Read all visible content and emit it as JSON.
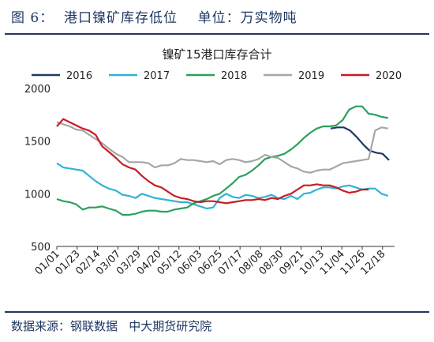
{
  "header": {
    "figure_title": "图 6：  港口镍矿库存低位    单位：万实物吨"
  },
  "footer": {
    "source": "数据来源：钢联数据   中大期货研究院"
  },
  "chart_data": {
    "type": "line",
    "title": "镍矿15港口库存合计",
    "xlabel": "",
    "ylabel": "",
    "ylim": [
      500,
      2000
    ],
    "y_ticks": [
      500,
      1000,
      1500,
      2000
    ],
    "x_ticks": [
      "01/01",
      "01/23",
      "02/14",
      "03/07",
      "03/29",
      "04/20",
      "05/12",
      "06/03",
      "06/25",
      "07/17",
      "08/08",
      "08/30",
      "09/21",
      "10/13",
      "11/04",
      "11/26",
      "12/18"
    ],
    "grid": false,
    "legend": "top",
    "series": [
      {
        "name": "2016",
        "color": "#1f3864",
        "x": [
          "10/23",
          "10/30",
          "11/06",
          "11/13",
          "11/20",
          "11/27",
          "12/04",
          "12/11",
          "12/18",
          "12/25"
        ],
        "values": [
          1620,
          1630,
          1630,
          1600,
          1540,
          1470,
          1410,
          1390,
          1380,
          1320
        ]
      },
      {
        "name": "2017",
        "color": "#31b2d8",
        "x": [
          "01/01",
          "01/08",
          "01/15",
          "01/22",
          "01/29",
          "02/05",
          "02/12",
          "02/19",
          "02/26",
          "03/05",
          "03/12",
          "03/19",
          "03/26",
          "04/02",
          "04/09",
          "04/16",
          "04/23",
          "04/30",
          "05/07",
          "05/14",
          "05/21",
          "05/28",
          "06/04",
          "06/11",
          "06/18",
          "06/25",
          "07/02",
          "07/09",
          "07/16",
          "07/23",
          "07/30",
          "08/06",
          "08/13",
          "08/20",
          "08/27",
          "09/03",
          "09/10",
          "09/17",
          "09/24",
          "10/01",
          "10/08",
          "10/15",
          "10/22",
          "10/29",
          "11/05",
          "11/12",
          "11/19",
          "11/26",
          "12/03",
          "12/10",
          "12/17",
          "12/24"
        ],
        "values": [
          1290,
          1250,
          1240,
          1230,
          1220,
          1170,
          1120,
          1080,
          1050,
          1030,
          990,
          980,
          960,
          1000,
          980,
          960,
          950,
          940,
          930,
          920,
          920,
          900,
          880,
          860,
          870,
          960,
          1000,
          970,
          960,
          990,
          980,
          960,
          970,
          990,
          960,
          950,
          980,
          950,
          1000,
          1010,
          1040,
          1060,
          1060,
          1050,
          1070,
          1080,
          1060,
          1040,
          1050,
          1050,
          1000,
          980
        ]
      },
      {
        "name": "2018",
        "color": "#2ca05a",
        "x": [
          "01/01",
          "01/08",
          "01/15",
          "01/22",
          "01/29",
          "02/05",
          "02/12",
          "02/19",
          "02/26",
          "03/05",
          "03/12",
          "03/19",
          "03/26",
          "04/02",
          "04/09",
          "04/16",
          "04/23",
          "04/30",
          "05/07",
          "05/14",
          "05/21",
          "05/28",
          "06/04",
          "06/11",
          "06/18",
          "06/25",
          "07/02",
          "07/09",
          "07/16",
          "07/23",
          "07/30",
          "08/06",
          "08/13",
          "08/20",
          "08/27",
          "09/03",
          "09/10",
          "09/17",
          "09/24",
          "10/01",
          "10/08",
          "10/15",
          "10/22",
          "10/29",
          "11/05",
          "11/12",
          "11/19",
          "11/26",
          "12/03",
          "12/10",
          "12/17",
          "12/24"
        ],
        "values": [
          950,
          930,
          920,
          900,
          850,
          870,
          870,
          880,
          860,
          840,
          800,
          800,
          810,
          830,
          840,
          840,
          830,
          830,
          850,
          860,
          870,
          910,
          930,
          950,
          980,
          1000,
          1050,
          1100,
          1160,
          1180,
          1220,
          1270,
          1330,
          1350,
          1360,
          1380,
          1420,
          1470,
          1530,
          1580,
          1620,
          1640,
          1640,
          1650,
          1700,
          1800,
          1830,
          1830,
          1760,
          1750,
          1730,
          1720
        ]
      },
      {
        "name": "2019",
        "color": "#a6a6a6",
        "x": [
          "01/01",
          "01/08",
          "01/15",
          "01/22",
          "01/29",
          "02/05",
          "02/12",
          "02/19",
          "02/26",
          "03/05",
          "03/12",
          "03/19",
          "03/26",
          "04/02",
          "04/09",
          "04/16",
          "04/23",
          "04/30",
          "05/07",
          "05/14",
          "05/21",
          "05/28",
          "06/04",
          "06/11",
          "06/18",
          "06/25",
          "07/02",
          "07/09",
          "07/16",
          "07/23",
          "07/30",
          "08/06",
          "08/13",
          "08/20",
          "08/27",
          "09/03",
          "09/10",
          "09/17",
          "09/24",
          "10/01",
          "10/08",
          "10/15",
          "10/22",
          "10/29",
          "11/05",
          "11/12",
          "11/19",
          "11/26",
          "12/03",
          "12/10",
          "12/17",
          "12/24"
        ],
        "values": [
          1680,
          1660,
          1640,
          1610,
          1600,
          1560,
          1520,
          1480,
          1430,
          1380,
          1350,
          1300,
          1300,
          1300,
          1290,
          1250,
          1270,
          1270,
          1290,
          1330,
          1320,
          1320,
          1310,
          1300,
          1310,
          1280,
          1320,
          1330,
          1320,
          1300,
          1310,
          1330,
          1370,
          1350,
          1340,
          1300,
          1260,
          1240,
          1210,
          1200,
          1220,
          1230,
          1230,
          1260,
          1290,
          1300,
          1310,
          1320,
          1330,
          1600,
          1630,
          1620
        ]
      },
      {
        "name": "2020",
        "color": "#c91c23",
        "x": [
          "01/01",
          "01/08",
          "01/15",
          "01/22",
          "01/29",
          "02/05",
          "02/12",
          "02/19",
          "02/26",
          "03/05",
          "03/12",
          "03/19",
          "03/26",
          "04/02",
          "04/09",
          "04/16",
          "04/23",
          "04/30",
          "05/07",
          "05/14",
          "05/21",
          "05/28",
          "06/04",
          "06/11",
          "06/18",
          "06/25",
          "07/02",
          "07/09",
          "07/16",
          "07/23",
          "07/30",
          "08/06",
          "08/13",
          "08/20",
          "08/27",
          "09/03",
          "09/10",
          "09/17",
          "09/24",
          "10/01",
          "10/08",
          "10/15",
          "10/22",
          "10/29",
          "11/05",
          "11/12",
          "11/19",
          "11/26",
          "12/03"
        ],
        "values": [
          1640,
          1710,
          1680,
          1650,
          1620,
          1600,
          1560,
          1450,
          1400,
          1340,
          1280,
          1250,
          1230,
          1170,
          1120,
          1080,
          1060,
          1020,
          980,
          960,
          950,
          930,
          920,
          930,
          930,
          920,
          910,
          920,
          930,
          940,
          940,
          950,
          940,
          960,
          950,
          980,
          1000,
          1040,
          1080,
          1080,
          1090,
          1080,
          1080,
          1060,
          1030,
          1010,
          1020,
          1040,
          1040
        ]
      }
    ]
  }
}
